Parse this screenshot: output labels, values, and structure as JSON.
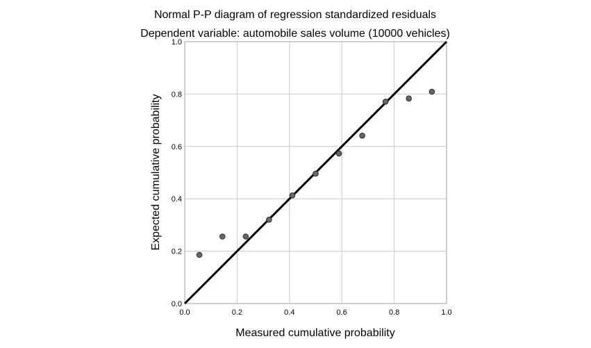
{
  "chart_data": {
    "type": "scatter",
    "title": "Normal P-P diagram of regression standardized residuals",
    "subtitle": "Dependent variable: automobile sales volume (10000 vehicles)",
    "xlabel": "Measured cumulative probability",
    "ylabel": "Expected cumulative probability",
    "xlim": [
      0.0,
      1.0
    ],
    "ylim": [
      0.0,
      1.0
    ],
    "x_ticks": [
      "0.0",
      "0.2",
      "0.4",
      "0.6",
      "0.8",
      "1.0"
    ],
    "y_ticks": [
      "0.0",
      "0.2",
      "0.4",
      "0.6",
      "0.8",
      "1.0"
    ],
    "grid": true,
    "reference_line": {
      "from": [
        0.0,
        0.0
      ],
      "to": [
        1.0,
        1.0
      ]
    },
    "series": [
      {
        "x": [
          0.056,
          0.144,
          0.233,
          0.322,
          0.411,
          0.5,
          0.589,
          0.678,
          0.767,
          0.856,
          0.944
        ],
        "y": [
          0.186,
          0.256,
          0.256,
          0.32,
          0.413,
          0.496,
          0.573,
          0.641,
          0.771,
          0.783,
          0.809
        ]
      }
    ],
    "colors": {
      "point_fill": "#666666",
      "point_stroke": "#2b2b2b",
      "line": "#000000",
      "grid": "#c8c8c8",
      "frame": "#a0a0a0"
    }
  }
}
